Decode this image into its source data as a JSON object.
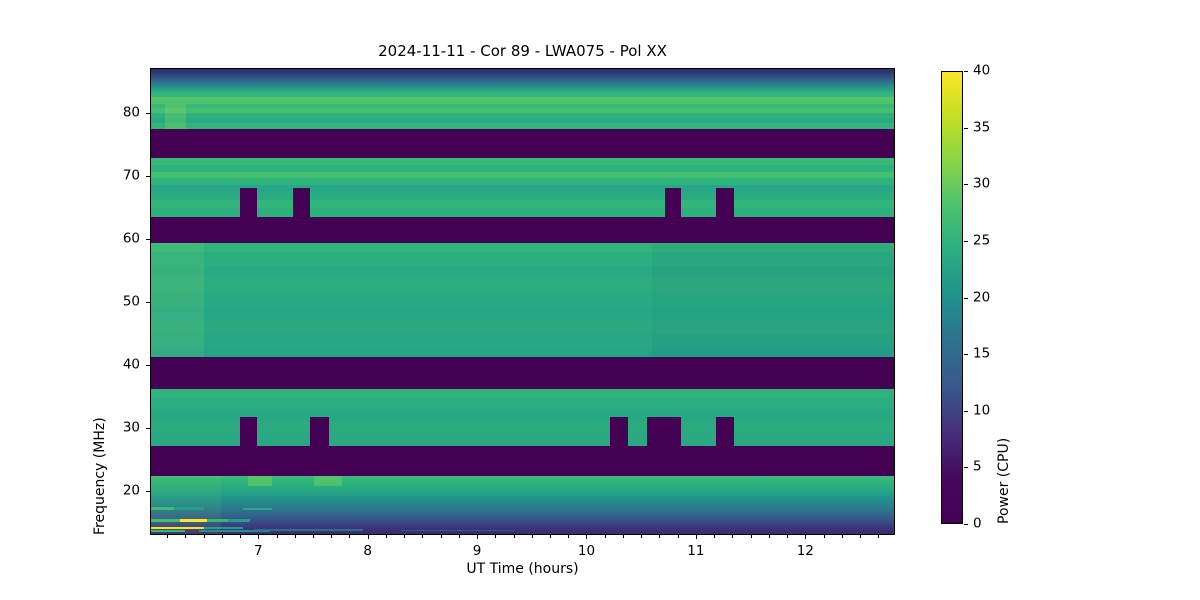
{
  "figure": {
    "background": "#ffffff"
  },
  "chart_data": {
    "type": "heatmap",
    "title": "2024-11-11 - Cor 89 - LWA075 - Pol XX",
    "xlabel": "UT Time (hours)",
    "ylabel": "Frequency (MHz)",
    "x_range": [
      6.01,
      12.82
    ],
    "x_ticks": [
      7,
      8,
      9,
      10,
      11,
      12
    ],
    "x_minor_ticks_per_hour": 6,
    "y_range": [
      13.0,
      87.1
    ],
    "y_ticks": [
      20,
      30,
      40,
      50,
      60,
      70,
      80
    ],
    "grid": false,
    "legend": "none",
    "colormap": "viridis",
    "background_color": "#440154",
    "colorbar": {
      "label": "Power (CPU)",
      "min": 0,
      "max": 40,
      "ticks": [
        0,
        5,
        10,
        15,
        20,
        25,
        30,
        35,
        40
      ],
      "stops": [
        "#fde725 0%",
        "#c2df23 10%",
        "#86d549 20%",
        "#4ac16d 30%",
        "#28ae80 40%",
        "#21908d 50%",
        "#2c718e 60%",
        "#38598c 70%",
        "#472d7b 80%",
        "#46085c 90%",
        "#440154 100%"
      ]
    },
    "flagged_dark_bands_mhz": [
      [
        72.9,
        77.5
      ],
      [
        59.4,
        63.5
      ],
      [
        36.1,
        41.2
      ],
      [
        22.3,
        27.0
      ]
    ],
    "bands": [
      {
        "name": "top-edge-gradient",
        "f": [
          82.7,
          87.1
        ],
        "stops": [
          "#2e2b70 0%",
          "#31497f 25%",
          "#2e6d8e 45%",
          "#24958b 65%",
          "#2eb27d 85%",
          "#3ab976 100%"
        ]
      },
      {
        "name": "bright-row-82mhz",
        "f": [
          81.5,
          82.7
        ],
        "stops": [
          "#54c468 0%",
          "#4cc26c 100%"
        ]
      },
      {
        "name": "rows-77-81mhz",
        "f": [
          77.5,
          81.5
        ],
        "stops": [
          "#37b878 0%",
          "#37b878 16%",
          "#47c06e 16%",
          "#47c06e 36%",
          "#2db17d 36%",
          "#2db17d 56%",
          "#28a983 56%",
          "#28a983 76%",
          "#32b57a 76%",
          "#32b57a 100%"
        ]
      },
      {
        "name": "flagged-73-77mhz",
        "f": [
          72.9,
          77.5
        ],
        "stops": [
          "#440154"
        ]
      },
      {
        "name": "rows-63-73mhz",
        "f": [
          63.5,
          72.9
        ],
        "stops": [
          "#38ba76 0%",
          "#38ba76 12%",
          "#2db17e 12%",
          "#2db17e 24%",
          "#42bf71 24%",
          "#42bf71 34%",
          "#2fb37c 34%",
          "#2fb37c 46%",
          "#26a886 46%",
          "#26a886 58%",
          "#2aab82 58%",
          "#2aab82 70%",
          "#31b57a 70%",
          "#31b57a 86%",
          "#2db07e 86%",
          "#2db07e 100%"
        ]
      },
      {
        "name": "flagged-59-63mhz",
        "f": [
          59.4,
          63.5
        ],
        "stops": [
          "#440154"
        ]
      },
      {
        "name": "band-41-59mhz",
        "f": [
          41.2,
          59.4
        ],
        "stops": [
          "#30b47b 0%",
          "#30b47b 8%",
          "#2bae80 8%",
          "#2bae80 20%",
          "#28aa83 20%",
          "#28aa83 30%",
          "#2dad7f 30%",
          "#2dad7f 42%",
          "#29ab82 42%",
          "#29ab82 55%",
          "#26a886 55%",
          "#26a886 68%",
          "#2baa80 68%",
          "#2baa80 80%",
          "#27a784 80%",
          "#27a784 92%",
          "#24a387 92%",
          "#24a387 100%"
        ]
      },
      {
        "name": "flagged-36-41mhz",
        "f": [
          36.1,
          41.2
        ],
        "stops": [
          "#440154"
        ]
      },
      {
        "name": "rows-27-36mhz",
        "f": [
          27.0,
          36.1
        ],
        "stops": [
          "#2fb37b 0%",
          "#2fb37b 15%",
          "#2aad80 15%",
          "#2aad80 35%",
          "#27a983 35%",
          "#27a983 55%",
          "#2cab7f 55%",
          "#2cab7f 75%",
          "#29a881 75%",
          "#29a881 100%"
        ]
      },
      {
        "name": "flagged-22-27mhz",
        "f": [
          22.3,
          27.0
        ],
        "stops": [
          "#440154"
        ]
      },
      {
        "name": "bottom-gradient-13-22mhz",
        "f": [
          13.0,
          22.3
        ],
        "stops": [
          "#3bbb75 0%",
          "#2fb37b 10%",
          "#27a884 25%",
          "#21918c 40%",
          "#2a7a8c 55%",
          "#33628d 68%",
          "#3a4a88 80%",
          "#3b3577 90%",
          "#3a2a6d 100%"
        ]
      }
    ],
    "notches": [
      {
        "f": [
          63.5,
          68.1
        ],
        "t": [
          6.83,
          6.98
        ]
      },
      {
        "f": [
          63.5,
          68.1
        ],
        "t": [
          7.31,
          7.47
        ]
      },
      {
        "f": [
          63.5,
          68.1
        ],
        "t": [
          10.72,
          10.87
        ]
      },
      {
        "f": [
          63.5,
          68.1
        ],
        "t": [
          11.19,
          11.35
        ]
      },
      {
        "f": [
          27.0,
          31.6
        ],
        "t": [
          6.83,
          6.98
        ]
      },
      {
        "f": [
          27.0,
          31.6
        ],
        "t": [
          7.47,
          7.64
        ]
      },
      {
        "f": [
          27.0,
          31.6
        ],
        "t": [
          10.22,
          10.38
        ]
      },
      {
        "f": [
          27.0,
          31.6
        ],
        "t": [
          10.56,
          10.87
        ]
      },
      {
        "f": [
          27.0,
          31.6
        ],
        "t": [
          11.19,
          11.35
        ]
      }
    ],
    "patches": [
      {
        "f": [
          77.5,
          81.5
        ],
        "t": [
          6.14,
          6.33
        ],
        "color": "rgba(140,216,92,0.30)"
      },
      {
        "f": [
          41.2,
          59.4
        ],
        "t": [
          6.01,
          6.5
        ],
        "color": "rgba(150,220,100,0.14)"
      },
      {
        "f": [
          41.2,
          59.4
        ],
        "t": [
          10.6,
          12.82
        ],
        "color": "rgba(20,70,110,0.06)"
      },
      {
        "f": [
          13.0,
          22.3
        ],
        "t": [
          6.01,
          6.65
        ],
        "color": "rgba(130,212,95,0.10)"
      },
      {
        "f": [
          20.6,
          22.3
        ],
        "t": [
          6.9,
          7.12
        ],
        "color": "rgba(115,208,90,0.50)"
      },
      {
        "f": [
          20.6,
          22.3
        ],
        "t": [
          7.5,
          7.76
        ],
        "color": "rgba(115,208,90,0.45)"
      }
    ],
    "streaks": [
      {
        "f": [
          16.9,
          17.35
        ],
        "t": [
          6.01,
          6.22
        ],
        "color": "#3dbc74"
      },
      {
        "f": [
          16.9,
          17.35
        ],
        "t": [
          6.22,
          6.5
        ],
        "color": "#1fa187"
      },
      {
        "f": [
          16.75,
          17.1
        ],
        "t": [
          6.85,
          7.12
        ],
        "color": "#27a487"
      },
      {
        "f": [
          14.95,
          15.4
        ],
        "t": [
          6.01,
          6.28
        ],
        "color": "#44bf70"
      },
      {
        "f": [
          14.95,
          15.4
        ],
        "t": [
          6.28,
          6.52
        ],
        "color": "#f8e621"
      },
      {
        "f": [
          14.95,
          15.4
        ],
        "t": [
          6.52,
          6.72
        ],
        "color": "#35b779"
      },
      {
        "f": [
          14.95,
          15.4
        ],
        "t": [
          6.72,
          6.92
        ],
        "color": "#1fa187"
      },
      {
        "f": [
          13.75,
          14.15
        ],
        "t": [
          6.01,
          6.5
        ],
        "color": "#f8e621"
      },
      {
        "f": [
          13.75,
          14.15
        ],
        "t": [
          6.5,
          6.85
        ],
        "color": "#1fa187"
      },
      {
        "f": [
          13.3,
          13.6
        ],
        "t": [
          6.01,
          6.32
        ],
        "color": "#35b779"
      },
      {
        "f": [
          13.35,
          13.6
        ],
        "t": [
          6.45,
          7.1
        ],
        "color": "#21918c"
      },
      {
        "f": [
          13.5,
          13.75
        ],
        "t": [
          6.95,
          7.95
        ],
        "color": "#2d708e"
      },
      {
        "f": [
          13.5,
          13.7
        ],
        "t": [
          8.3,
          9.35
        ],
        "color": "#315a8e"
      }
    ]
  }
}
